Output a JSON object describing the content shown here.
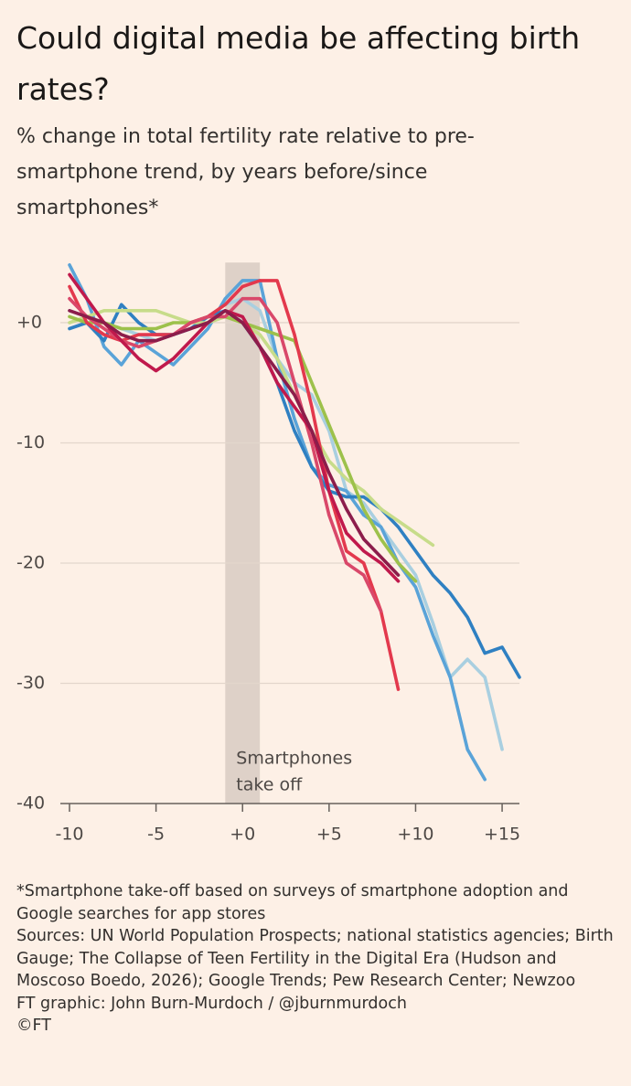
{
  "chart_data": {
    "type": "line",
    "title": "Could digital media be affecting birth rates?",
    "subtitle": "% change in total fertility rate relative to pre-smartphone trend, by years before/since smartphones*",
    "x": [
      -10,
      -9,
      -8,
      -7,
      -6,
      -5,
      -4,
      -3,
      -2,
      -1,
      0,
      1,
      2,
      3,
      4,
      5,
      6,
      7,
      8,
      9,
      10,
      11,
      12,
      13,
      14,
      15,
      16
    ],
    "xlim": [
      -10,
      16
    ],
    "xticks": [
      -10,
      -5,
      {
        "value": 0,
        "label": "+0"
      },
      {
        "value": 5,
        "label": "+5"
      },
      {
        "value": 10,
        "label": "+10"
      },
      {
        "value": 15,
        "label": "+15"
      }
    ],
    "ylim": [
      -40,
      5
    ],
    "yticks": [
      {
        "value": 0,
        "label": "+0"
      },
      -10,
      -20,
      -30,
      -40
    ],
    "grid": true,
    "shade": {
      "x": [
        -1,
        1
      ],
      "color": "#d8cbc2",
      "label": [
        "Smartphones",
        "take off"
      ]
    },
    "series": [
      {
        "color": "#a9cfe0",
        "values": [
          1,
          0.5,
          0,
          -0.5,
          -1,
          -1.5,
          -1,
          -0.5,
          0.5,
          1.5,
          2,
          1,
          -3,
          -5,
          -6,
          -9,
          -14,
          -15,
          -17,
          -19,
          -21,
          -25,
          -29.5,
          -28,
          -29.5,
          -35.5,
          null
        ]
      },
      {
        "color": "#5aa3d8",
        "values": [
          4.8,
          2,
          -2,
          -3.5,
          -1.5,
          -2.5,
          -3.5,
          -2,
          -0.5,
          2,
          3.5,
          3.5,
          -3,
          -8,
          -12,
          -13.5,
          -14,
          -16,
          -17,
          -20,
          -22,
          -26,
          -29.5,
          -35.5,
          -38,
          null,
          null
        ]
      },
      {
        "color": "#2f80c2",
        "values": [
          -0.5,
          0,
          -1.5,
          1.5,
          0,
          -1,
          -1,
          -0.5,
          0.5,
          1,
          0,
          -2,
          -5,
          -9,
          -12,
          -14,
          -14.5,
          -14.5,
          -15.5,
          -17,
          -19,
          -21,
          -22.5,
          -24.5,
          -27.5,
          -27,
          -29.5
        ]
      },
      {
        "color": "#c7dc8a",
        "values": [
          0,
          0.5,
          1,
          1,
          1,
          1,
          0.5,
          0,
          0,
          0.5,
          0,
          -1,
          -3,
          -6,
          -9,
          -11.5,
          -13,
          -14,
          -15.5,
          -16.5,
          -17.5,
          -18.5,
          null,
          null,
          null,
          null,
          null
        ]
      },
      {
        "color": "#9dc14b",
        "values": [
          0.5,
          0,
          0,
          -0.5,
          -0.5,
          -0.5,
          0,
          0,
          0.5,
          0.5,
          0,
          -0.5,
          -1,
          -1.5,
          -5,
          -8.5,
          -12,
          -15.5,
          -18,
          -20,
          -21.5,
          null,
          null,
          null,
          null,
          null,
          null
        ]
      },
      {
        "color": "#e3394d",
        "values": [
          3,
          0,
          -1,
          -1.5,
          -1,
          -1,
          -1,
          0,
          0.5,
          1.5,
          3,
          3.5,
          3.5,
          -1,
          -7,
          -14,
          -19,
          -20,
          -24,
          -30.5,
          null,
          null,
          null,
          null,
          null,
          null,
          null
        ]
      },
      {
        "color": "#d9486a",
        "values": [
          2,
          0.5,
          -0.5,
          -1.5,
          -2,
          -1.5,
          -1,
          0,
          0.5,
          0.5,
          2,
          2,
          0,
          -5,
          -10,
          -16,
          -20,
          -21,
          -24,
          null,
          null,
          null,
          null,
          null,
          null,
          null,
          null
        ]
      },
      {
        "color": "#c0194c",
        "values": [
          4,
          2,
          0,
          -1.5,
          -3,
          -4,
          -3,
          -1.5,
          0,
          1,
          0.5,
          -2,
          -5,
          -7,
          -9,
          -14,
          -17.5,
          -19,
          -20,
          -21.5,
          null,
          null,
          null,
          null,
          null,
          null,
          null
        ]
      },
      {
        "color": "#8c1d4b",
        "values": [
          1,
          0.5,
          0,
          -1,
          -1.5,
          -1.5,
          -1,
          -0.5,
          0,
          1,
          0,
          -2,
          -4,
          -6,
          -9,
          -12.5,
          -15.5,
          -18,
          -19.5,
          -21,
          null,
          null,
          null,
          null,
          null,
          null,
          null
        ]
      }
    ],
    "notes": [
      "*Smartphone take-off based on surveys of smartphone adoption and Google searches for app stores",
      "Sources: UN World Population Prospects; national statistics agencies; Birth Gauge; The Collapse of Teen Fertility in the Digital Era (Hudson and Moscoso Boedo, 2026); Google Trends; Pew Research Center; Newzoo",
      "FT graphic: John Burn-Murdoch / @jburnmurdoch",
      "©FT"
    ]
  }
}
